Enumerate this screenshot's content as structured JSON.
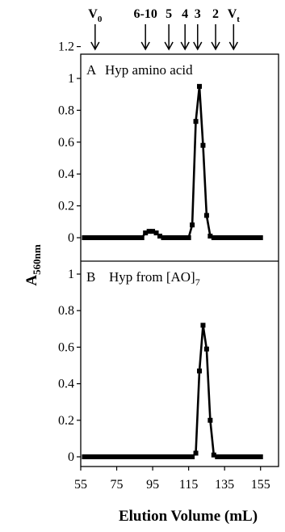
{
  "chart_data": [
    {
      "type": "line",
      "panel_label": "A",
      "title": "Hyp amino acid",
      "xlabel": "Elution Volume (mL)",
      "ylabel": "A",
      "ylabel_sub": "560nm",
      "xlim": [
        55,
        165
      ],
      "ylim": [
        0,
        1.2
      ],
      "yticks": [
        0,
        0.2,
        0.4,
        0.6,
        0.8,
        1,
        1.2
      ],
      "grid": false,
      "series": [
        {
          "x": [
            57,
            59,
            61,
            63,
            65,
            67,
            69,
            71,
            73,
            75,
            77,
            79,
            81,
            83,
            85,
            87,
            89,
            91,
            93,
            95,
            97,
            99,
            101,
            103,
            105,
            107,
            109,
            111,
            113,
            115,
            117,
            119,
            121,
            123,
            125,
            127,
            129,
            131,
            133,
            135,
            137,
            139,
            141,
            143,
            145,
            147,
            149,
            151,
            153,
            155
          ],
          "y": [
            0,
            0,
            0,
            0,
            0,
            0,
            0,
            0,
            0,
            0,
            0,
            0,
            0,
            0,
            0,
            0,
            0,
            0.03,
            0.04,
            0.04,
            0.03,
            0.01,
            0,
            0,
            0,
            0,
            0,
            0,
            0,
            0,
            0.08,
            0.73,
            0.95,
            0.58,
            0.14,
            0.01,
            0,
            0,
            0,
            0,
            0,
            0,
            0,
            0,
            0,
            0,
            0,
            0,
            0,
            0
          ]
        }
      ]
    },
    {
      "type": "line",
      "panel_label": "B",
      "title_main": "Hyp from [AO]",
      "title_sub": "7",
      "xlim": [
        55,
        165
      ],
      "ylim": [
        0,
        1.2
      ],
      "yticks": [
        0,
        0.2,
        0.4,
        0.6,
        0.8,
        1
      ],
      "xticks": [
        55,
        75,
        95,
        115,
        135,
        155
      ],
      "grid": false,
      "series": [
        {
          "x": [
            57,
            59,
            61,
            63,
            65,
            67,
            69,
            71,
            73,
            75,
            77,
            79,
            81,
            83,
            85,
            87,
            89,
            91,
            93,
            95,
            97,
            99,
            101,
            103,
            105,
            107,
            109,
            111,
            113,
            115,
            117,
            119,
            121,
            123,
            125,
            127,
            129,
            131,
            133,
            135,
            137,
            139,
            141,
            143,
            145,
            147,
            149,
            151,
            153,
            155
          ],
          "y": [
            0,
            0,
            0,
            0,
            0,
            0,
            0,
            0,
            0,
            0,
            0,
            0,
            0,
            0,
            0,
            0,
            0,
            0,
            0,
            0,
            0,
            0,
            0,
            0,
            0,
            0,
            0,
            0,
            0,
            0,
            0,
            0.02,
            0.47,
            0.72,
            0.59,
            0.2,
            0.01,
            0,
            0,
            0,
            0,
            0,
            0,
            0,
            0,
            0,
            0,
            0,
            0,
            0
          ]
        }
      ]
    }
  ],
  "markers": [
    {
      "label": "V",
      "sub": "0",
      "x": 63
    },
    {
      "label": "6-10",
      "sub": "",
      "x": 91
    },
    {
      "label": "5",
      "sub": "",
      "x": 104
    },
    {
      "label": "4",
      "sub": "",
      "x": 113
    },
    {
      "label": "3",
      "sub": "",
      "x": 120
    },
    {
      "label": "2",
      "sub": "",
      "x": 130
    },
    {
      "label": "V",
      "sub": "t",
      "x": 140
    }
  ]
}
